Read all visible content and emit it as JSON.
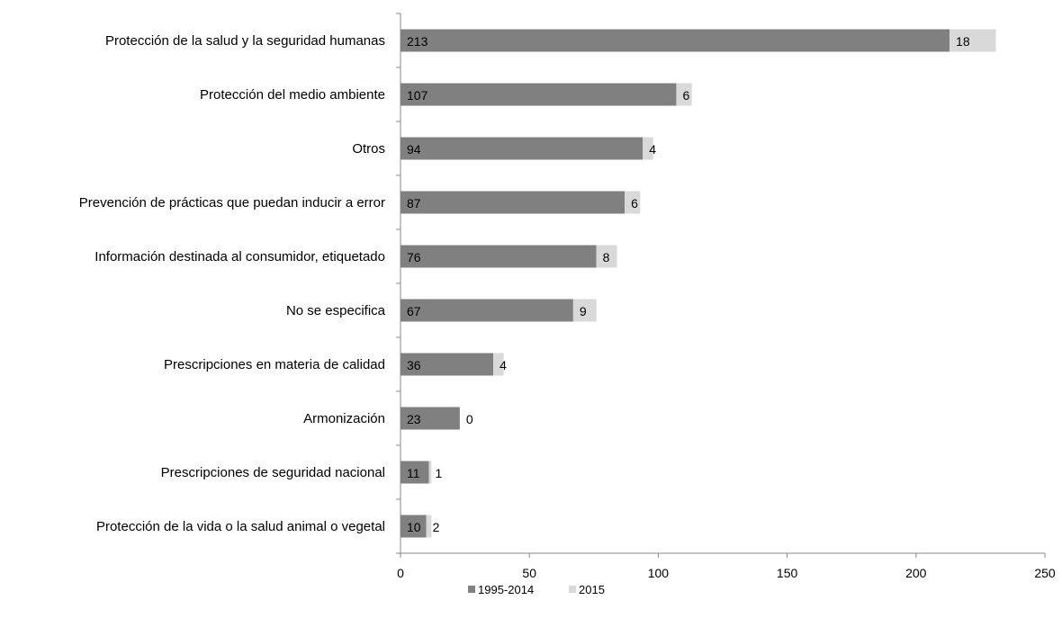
{
  "chart_data": {
    "type": "bar",
    "orientation": "horizontal",
    "stacked": true,
    "categories": [
      "Protección de la salud y la seguridad humanas",
      "Protección del medio ambiente",
      "Otros",
      "Prevención de prácticas que puedan inducir a error",
      "Información destinada al consumidor, etiquetado",
      "No se especifica",
      "Prescripciones en materia de calidad",
      "Armonización",
      "Prescripciones de seguridad nacional",
      "Protección de la vida o la salud animal o vegetal"
    ],
    "series": [
      {
        "name": "1995-2014",
        "values": [
          213,
          107,
          94,
          87,
          76,
          67,
          36,
          23,
          11,
          10
        ],
        "color": "#808080"
      },
      {
        "name": "2015",
        "values": [
          18,
          6,
          4,
          6,
          8,
          9,
          4,
          0,
          1,
          2
        ],
        "color": "#d9d9d9"
      }
    ],
    "xlim": [
      0,
      250
    ],
    "xticks": [
      0,
      50,
      100,
      150,
      200,
      250
    ],
    "title": "",
    "xlabel": "",
    "ylabel": "",
    "grid": false,
    "legend_position": "bottom",
    "data_labels": true
  }
}
